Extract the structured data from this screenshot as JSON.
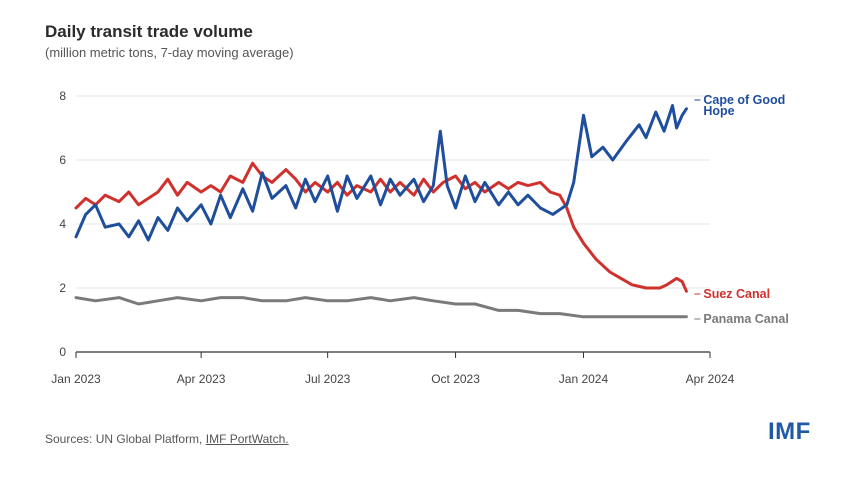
{
  "title": "Daily transit trade volume",
  "subtitle": "(million metric tons, 7-day moving average)",
  "source": {
    "prefix": "Sources: UN Global Platform, ",
    "link": "IMF PortWatch."
  },
  "logo": "IMF",
  "colors": {
    "cape": "#1e4e9c",
    "suez": "#d0312d",
    "panama": "#7a7a7a",
    "grid": "#e6e6e6",
    "axis": "#333333",
    "tick_text": "#444444"
  },
  "chart_data": {
    "type": "line",
    "title": "Daily transit trade volume",
    "subtitle": "(million metric tons, 7-day moving average)",
    "xlabel": "",
    "ylabel": "",
    "ylim": [
      0,
      8
    ],
    "yticks": [
      0,
      2,
      4,
      6,
      8
    ],
    "ytick_labels": [
      "0",
      "2",
      "4",
      "6",
      "8"
    ],
    "xticks": [
      "2023-01-01",
      "2023-04-01",
      "2023-07-01",
      "2023-10-01",
      "2024-01-01",
      "2024-04-01"
    ],
    "xtick_labels": [
      "Jan 2023",
      "Apr 2023",
      "Jul 2023",
      "Oct 2023",
      "Jan 2024",
      "Apr 2024"
    ],
    "xlim": [
      "2023-01-01",
      "2024-04-01"
    ],
    "grid": "horizontal",
    "legend": "direct labels at line ends (right)",
    "series": [
      {
        "name": "Cape of Good Hope",
        "color": "#1e4e9c",
        "points": [
          [
            "2023-01-01",
            3.6
          ],
          [
            "2023-01-08",
            4.3
          ],
          [
            "2023-01-15",
            4.6
          ],
          [
            "2023-01-22",
            3.9
          ],
          [
            "2023-02-01",
            4.0
          ],
          [
            "2023-02-08",
            3.6
          ],
          [
            "2023-02-15",
            4.1
          ],
          [
            "2023-02-22",
            3.5
          ],
          [
            "2023-03-01",
            4.2
          ],
          [
            "2023-03-08",
            3.8
          ],
          [
            "2023-03-15",
            4.5
          ],
          [
            "2023-03-22",
            4.1
          ],
          [
            "2023-04-01",
            4.6
          ],
          [
            "2023-04-08",
            4.0
          ],
          [
            "2023-04-15",
            4.9
          ],
          [
            "2023-04-22",
            4.2
          ],
          [
            "2023-05-01",
            5.1
          ],
          [
            "2023-05-08",
            4.4
          ],
          [
            "2023-05-15",
            5.6
          ],
          [
            "2023-05-22",
            4.8
          ],
          [
            "2023-06-01",
            5.2
          ],
          [
            "2023-06-08",
            4.5
          ],
          [
            "2023-06-15",
            5.4
          ],
          [
            "2023-06-22",
            4.7
          ],
          [
            "2023-07-01",
            5.5
          ],
          [
            "2023-07-08",
            4.4
          ],
          [
            "2023-07-15",
            5.5
          ],
          [
            "2023-07-22",
            4.8
          ],
          [
            "2023-08-01",
            5.5
          ],
          [
            "2023-08-08",
            4.6
          ],
          [
            "2023-08-15",
            5.4
          ],
          [
            "2023-08-22",
            4.9
          ],
          [
            "2023-09-01",
            5.4
          ],
          [
            "2023-09-08",
            4.7
          ],
          [
            "2023-09-15",
            5.2
          ],
          [
            "2023-09-20",
            6.9
          ],
          [
            "2023-09-25",
            5.2
          ],
          [
            "2023-10-01",
            4.5
          ],
          [
            "2023-10-08",
            5.5
          ],
          [
            "2023-10-15",
            4.7
          ],
          [
            "2023-10-22",
            5.3
          ],
          [
            "2023-11-01",
            4.6
          ],
          [
            "2023-11-08",
            5.0
          ],
          [
            "2023-11-15",
            4.6
          ],
          [
            "2023-11-22",
            4.9
          ],
          [
            "2023-12-01",
            4.5
          ],
          [
            "2023-12-10",
            4.3
          ],
          [
            "2023-12-20",
            4.6
          ],
          [
            "2023-12-25",
            5.3
          ],
          [
            "2024-01-01",
            7.4
          ],
          [
            "2024-01-07",
            6.1
          ],
          [
            "2024-01-15",
            6.4
          ],
          [
            "2024-01-22",
            6.0
          ],
          [
            "2024-02-01",
            6.6
          ],
          [
            "2024-02-10",
            7.1
          ],
          [
            "2024-02-15",
            6.7
          ],
          [
            "2024-02-22",
            7.5
          ],
          [
            "2024-02-28",
            6.9
          ],
          [
            "2024-03-05",
            7.7
          ],
          [
            "2024-03-08",
            7.0
          ],
          [
            "2024-03-12",
            7.4
          ],
          [
            "2024-03-15",
            7.6
          ]
        ]
      },
      {
        "name": "Suez Canal",
        "color": "#d0312d",
        "points": [
          [
            "2023-01-01",
            4.5
          ],
          [
            "2023-01-08",
            4.8
          ],
          [
            "2023-01-15",
            4.6
          ],
          [
            "2023-01-22",
            4.9
          ],
          [
            "2023-02-01",
            4.7
          ],
          [
            "2023-02-08",
            5.0
          ],
          [
            "2023-02-15",
            4.6
          ],
          [
            "2023-02-22",
            4.8
          ],
          [
            "2023-03-01",
            5.0
          ],
          [
            "2023-03-08",
            5.4
          ],
          [
            "2023-03-15",
            4.9
          ],
          [
            "2023-03-22",
            5.3
          ],
          [
            "2023-04-01",
            5.0
          ],
          [
            "2023-04-08",
            5.2
          ],
          [
            "2023-04-15",
            5.0
          ],
          [
            "2023-04-22",
            5.5
          ],
          [
            "2023-05-01",
            5.3
          ],
          [
            "2023-05-08",
            5.9
          ],
          [
            "2023-05-15",
            5.5
          ],
          [
            "2023-05-22",
            5.3
          ],
          [
            "2023-06-01",
            5.7
          ],
          [
            "2023-06-08",
            5.4
          ],
          [
            "2023-06-15",
            5.0
          ],
          [
            "2023-06-22",
            5.3
          ],
          [
            "2023-07-01",
            5.0
          ],
          [
            "2023-07-08",
            5.3
          ],
          [
            "2023-07-15",
            4.9
          ],
          [
            "2023-07-22",
            5.2
          ],
          [
            "2023-08-01",
            5.0
          ],
          [
            "2023-08-08",
            5.4
          ],
          [
            "2023-08-15",
            5.0
          ],
          [
            "2023-08-22",
            5.3
          ],
          [
            "2023-09-01",
            4.9
          ],
          [
            "2023-09-08",
            5.4
          ],
          [
            "2023-09-15",
            5.0
          ],
          [
            "2023-09-22",
            5.3
          ],
          [
            "2023-10-01",
            5.5
          ],
          [
            "2023-10-08",
            5.1
          ],
          [
            "2023-10-15",
            5.3
          ],
          [
            "2023-10-22",
            5.0
          ],
          [
            "2023-11-01",
            5.3
          ],
          [
            "2023-11-08",
            5.1
          ],
          [
            "2023-11-15",
            5.3
          ],
          [
            "2023-11-22",
            5.2
          ],
          [
            "2023-12-01",
            5.3
          ],
          [
            "2023-12-08",
            5.0
          ],
          [
            "2023-12-15",
            4.9
          ],
          [
            "2023-12-20",
            4.5
          ],
          [
            "2023-12-25",
            3.9
          ],
          [
            "2024-01-01",
            3.4
          ],
          [
            "2024-01-10",
            2.9
          ],
          [
            "2024-01-20",
            2.5
          ],
          [
            "2024-01-28",
            2.3
          ],
          [
            "2024-02-05",
            2.1
          ],
          [
            "2024-02-15",
            2.0
          ],
          [
            "2024-02-25",
            2.0
          ],
          [
            "2024-03-01",
            2.1
          ],
          [
            "2024-03-08",
            2.3
          ],
          [
            "2024-03-12",
            2.2
          ],
          [
            "2024-03-15",
            1.9
          ]
        ]
      },
      {
        "name": "Panama Canal",
        "color": "#7a7a7a",
        "points": [
          [
            "2023-01-01",
            1.7
          ],
          [
            "2023-01-15",
            1.6
          ],
          [
            "2023-02-01",
            1.7
          ],
          [
            "2023-02-15",
            1.5
          ],
          [
            "2023-03-01",
            1.6
          ],
          [
            "2023-03-15",
            1.7
          ],
          [
            "2023-04-01",
            1.6
          ],
          [
            "2023-04-15",
            1.7
          ],
          [
            "2023-05-01",
            1.7
          ],
          [
            "2023-05-15",
            1.6
          ],
          [
            "2023-06-01",
            1.6
          ],
          [
            "2023-06-15",
            1.7
          ],
          [
            "2023-07-01",
            1.6
          ],
          [
            "2023-07-15",
            1.6
          ],
          [
            "2023-08-01",
            1.7
          ],
          [
            "2023-08-15",
            1.6
          ],
          [
            "2023-09-01",
            1.7
          ],
          [
            "2023-09-15",
            1.6
          ],
          [
            "2023-10-01",
            1.5
          ],
          [
            "2023-10-15",
            1.5
          ],
          [
            "2023-11-01",
            1.3
          ],
          [
            "2023-11-15",
            1.3
          ],
          [
            "2023-12-01",
            1.2
          ],
          [
            "2023-12-15",
            1.2
          ],
          [
            "2024-01-01",
            1.1
          ],
          [
            "2024-01-15",
            1.1
          ],
          [
            "2024-02-01",
            1.1
          ],
          [
            "2024-02-15",
            1.1
          ],
          [
            "2024-03-01",
            1.1
          ],
          [
            "2024-03-15",
            1.1
          ]
        ]
      }
    ],
    "end_labels": [
      {
        "text": "Cape of Good Hope",
        "series": "Cape of Good Hope"
      },
      {
        "text": "Suez Canal",
        "series": "Suez Canal"
      },
      {
        "text": "Panama Canal",
        "series": "Panama Canal"
      }
    ]
  }
}
